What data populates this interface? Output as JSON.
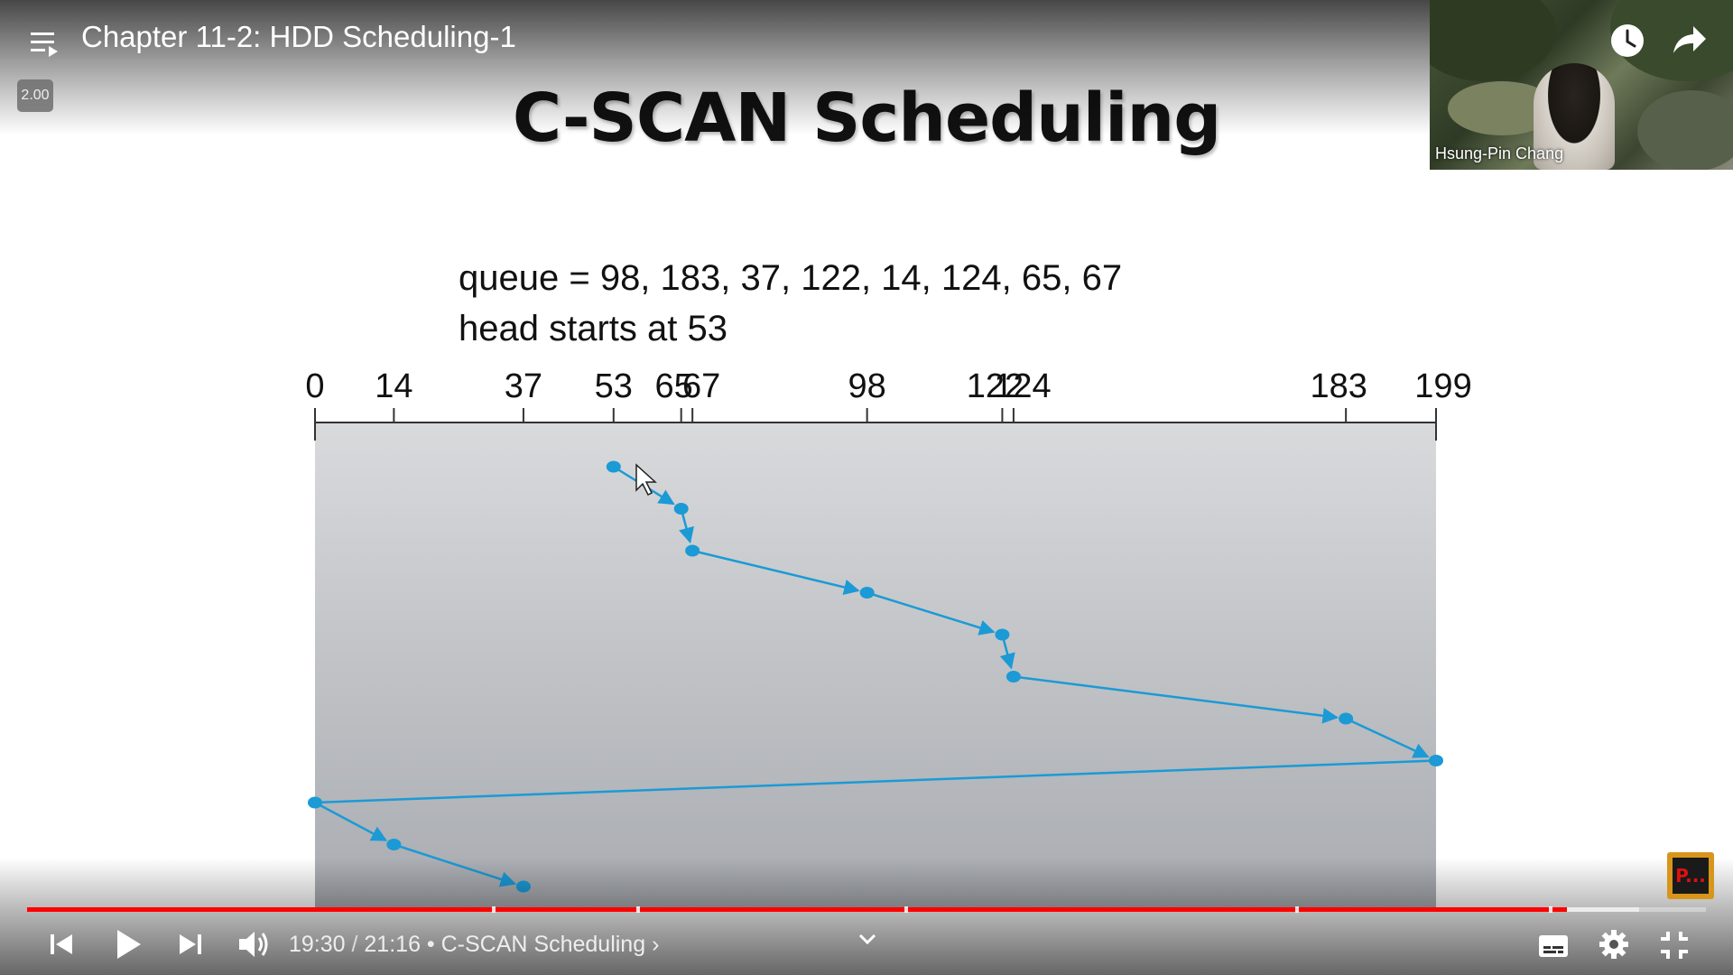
{
  "video": {
    "title": "Chapter 11-2: HDD Scheduling-1",
    "speed": "2.00",
    "current_time": "19:30",
    "separator": " / ",
    "duration": "21:16",
    "chapter_prefix": " • ",
    "chapter_name": "C-SCAN Scheduling",
    "chapter_arrow": " ›",
    "progress": 0.917,
    "buffered": 0.96
  },
  "slide": {
    "title": "C-SCAN Scheduling",
    "queue_line": "queue = 98, 183, 37, 122, 14, 124, 65, 67",
    "head_line": "head starts at 53"
  },
  "webcam": {
    "name": "Hsung-Pin Chang"
  },
  "badge": {
    "text": "P..."
  },
  "chart_data": {
    "type": "line",
    "title": "",
    "x_ticks": [
      0,
      14,
      37,
      53,
      65,
      67,
      98,
      122,
      124,
      183,
      199
    ],
    "xlim": [
      0,
      199
    ],
    "path": [
      53,
      65,
      67,
      98,
      122,
      124,
      183,
      199,
      0,
      14,
      37
    ],
    "colors": {
      "line": "#1b9ad6",
      "plot_bg_top": "#d8dadc",
      "plot_bg_bottom": "#a8abb0"
    }
  },
  "icons": {
    "playlist": "playlist-icon",
    "watch_later": "clock-icon",
    "share": "share-icon",
    "prev": "skip-previous-icon",
    "play": "play-icon",
    "next": "skip-next-icon",
    "volume": "volume-icon",
    "chevron": "chevron-down-icon",
    "subtitles": "subtitles-icon",
    "settings": "gear-icon",
    "exit_fullscreen": "exit-fullscreen-icon"
  }
}
